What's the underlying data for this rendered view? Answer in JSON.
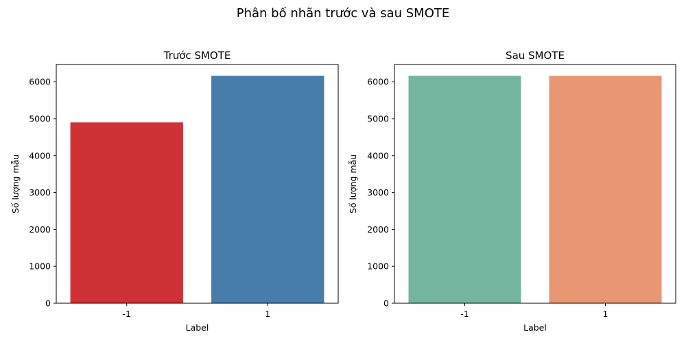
{
  "figure": {
    "suptitle": "Phân bố nhãn trước và sau SMOTE"
  },
  "chart_data": [
    {
      "type": "bar",
      "title": "Trước SMOTE",
      "xlabel": "Label",
      "ylabel": "Số lượng mẫu",
      "categories": [
        "-1",
        "1"
      ],
      "values": [
        4900,
        6160
      ],
      "colors": [
        "#cf3236",
        "#477dab"
      ],
      "ylim": [
        0,
        6468
      ],
      "yticks": [
        0,
        1000,
        2000,
        3000,
        4000,
        5000,
        6000
      ],
      "grid": false
    },
    {
      "type": "bar",
      "title": "Sau SMOTE",
      "xlabel": "Label",
      "ylabel": "Số lượng mẫu",
      "categories": [
        "-1",
        "1"
      ],
      "values": [
        6160,
        6160
      ],
      "colors": [
        "#74b5a0",
        "#e99673"
      ],
      "ylim": [
        0,
        6468
      ],
      "yticks": [
        0,
        1000,
        2000,
        3000,
        4000,
        5000,
        6000
      ],
      "grid": false
    }
  ]
}
